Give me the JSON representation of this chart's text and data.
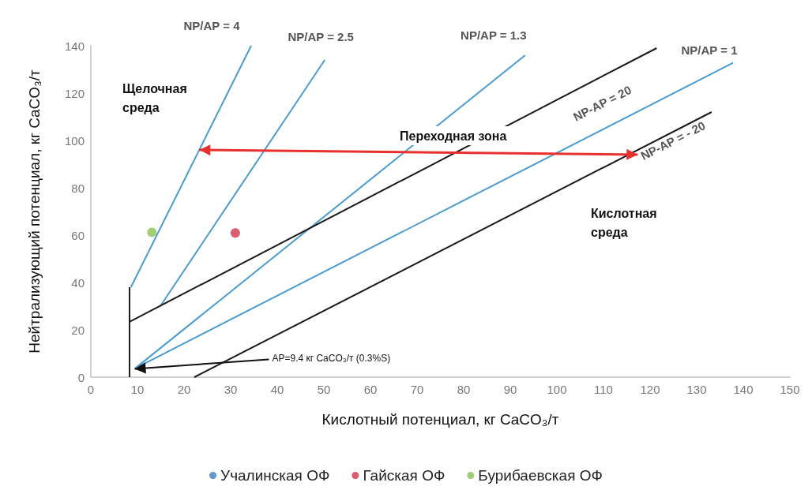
{
  "chart_data": {
    "type": "scatter",
    "xlabel": "Кислотный потенциал, кг CaCO₃/т",
    "ylabel": "Нейтрализующий потенциал, кг CaCO₃/т",
    "xlim": [
      0,
      150
    ],
    "xticks": [
      0,
      10,
      20,
      30,
      40,
      50,
      60,
      70,
      80,
      90,
      100,
      110,
      120,
      130,
      140,
      150
    ],
    "ylim": [
      0,
      140
    ],
    "yticks": [
      0,
      20,
      40,
      60,
      80,
      100,
      120,
      140
    ],
    "grid": false,
    "legend": "bottom",
    "annotations": [
      "Щелочная\nсреда",
      "Переходная зона",
      "Кислотная\nсреда",
      {
        "text": "AP=9.4 кг CaCO₃/т (0.3%S)",
        "x": 9.4,
        "y": 3.5
      }
    ],
    "series": [
      {
        "name": "Учалинская ОФ",
        "color": "#3b7dc4"
      },
      {
        "name": "Гайская ОФ",
        "color": "#d3324a",
        "x": [
          31.0
        ],
        "values": [
          60.9
        ]
      },
      {
        "name": "Бурибаевская ОФ",
        "color": "#8cc152",
        "x": [
          13.1
        ],
        "values": [
          61.2
        ]
      },
      {
        "name": "NP/AP = 4",
        "type": "line",
        "color": "#4a9bd0",
        "x": [
          8.6,
          34.4
        ],
        "values": [
          38,
          140
        ]
      },
      {
        "name": "NP/AP = 2.5",
        "type": "line",
        "color": "#4a9bd0",
        "x": [
          14.9,
          50.2
        ],
        "values": [
          30,
          134
        ]
      },
      {
        "name": "NP/AP = 1.3",
        "type": "line",
        "color": "#4a9bd0",
        "x": [
          9.5,
          93.2
        ],
        "values": [
          3.7,
          136
        ]
      },
      {
        "name": "NP/AP = 1",
        "type": "line",
        "color": "#4a9bd0",
        "x": [
          9.5,
          137.8
        ],
        "values": [
          3.7,
          132.8
        ]
      },
      {
        "name": "NP-AP = 20",
        "type": "line",
        "color": "#1a1a1a",
        "x": [
          8.3,
          121.4
        ],
        "values": [
          23.4,
          139
        ]
      },
      {
        "name": "NP-AP = - 20",
        "type": "line",
        "color": "#1a1a1a",
        "x": [
          22.2,
          133.2
        ],
        "values": [
          0,
          112
        ]
      },
      {
        "type": "line",
        "color": "#1a1a1a",
        "x": [
          8.3,
          8.3
        ],
        "values": [
          0,
          38
        ]
      }
    ]
  }
}
